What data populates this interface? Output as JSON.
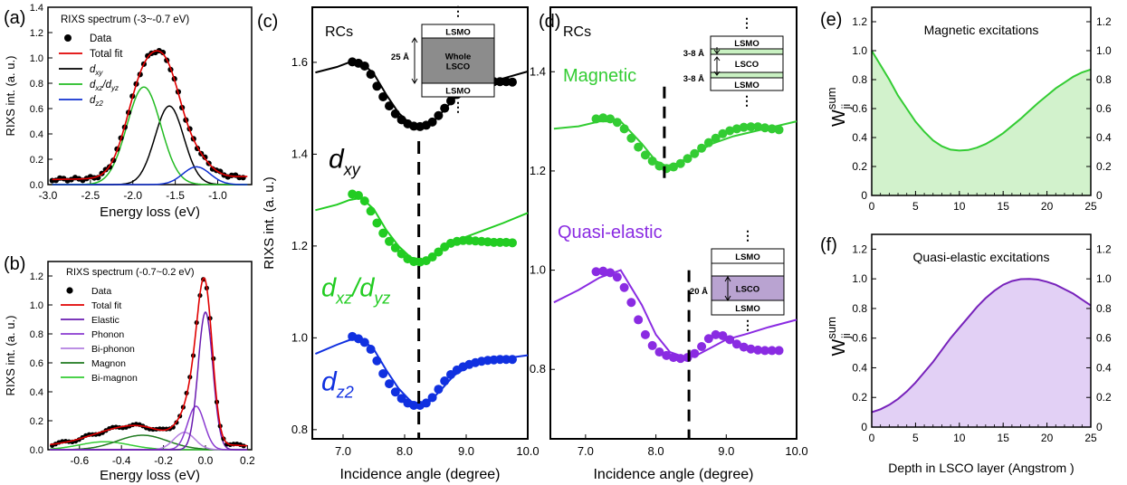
{
  "chart_data": [
    {
      "id": "a",
      "type": "line",
      "panel_label": "(a)",
      "legend_title": "RIXS spectrum (-3~-0.7 eV)",
      "xlabel": "Energy loss (eV)",
      "ylabel": "RIXS int. (a. u.)",
      "xlim": [
        -3.0,
        -0.6
      ],
      "ylim": [
        0.0,
        1.4
      ],
      "xticks": [
        "-3.0",
        "-2.5",
        "-2.0",
        "-1.5",
        "-1.0"
      ],
      "yticks": [
        "0.0",
        "0.2",
        "0.4",
        "0.6",
        "0.8",
        "1.0",
        "1.2",
        "1.4"
      ],
      "legend": [
        "Data",
        "Total fit",
        "dxy",
        "dxz/dyz",
        "dz2"
      ],
      "colors": {
        "data": "#000000",
        "total": "#e00000",
        "dxy": "#000000",
        "dxz": "#22bb22",
        "dz2": "#1030d0"
      },
      "peaks": {
        "dxy": {
          "center": -1.57,
          "height": 0.62,
          "width": 0.17
        },
        "dxz_dyz": {
          "center": -1.87,
          "height": 0.77,
          "width": 0.2
        },
        "dz2": {
          "center": -1.25,
          "height": 0.14,
          "width": 0.16
        },
        "background": {
          "offset": 0.04,
          "slope": 0.01
        }
      }
    },
    {
      "id": "b",
      "type": "line",
      "panel_label": "(b)",
      "legend_title": "RIXS spectrum (-0.7~0.2 eV)",
      "xlabel": "Energy loss (eV)",
      "ylabel": "RIXS int. (a. u.)",
      "xlim": [
        -0.75,
        0.22
      ],
      "ylim": [
        0.0,
        1.3
      ],
      "xticks": [
        "-0.6",
        "-0.4",
        "-0.2",
        "0.0",
        "0.2"
      ],
      "yticks": [
        "0.0",
        "0.2",
        "0.4",
        "0.6",
        "0.8",
        "1.0",
        "1.2"
      ],
      "legend": [
        "Data",
        "Total fit",
        "Elastic",
        "Phonon",
        "Bi-phonon",
        "Magnon",
        "Bi-magnon"
      ],
      "colors": {
        "data": "#000000",
        "total": "#e00000",
        "elastic": "#6a1bb0",
        "phonon": "#8a3ad0",
        "biphonon": "#b37fe0",
        "magnon": "#1f7a1f",
        "bimagnon": "#33cc33"
      },
      "peaks": {
        "elastic": {
          "center": 0.0,
          "height": 0.95,
          "width": 0.035
        },
        "phonon": {
          "center": -0.045,
          "height": 0.3,
          "width": 0.04
        },
        "biphonon": {
          "center": -0.1,
          "height": 0.12,
          "width": 0.05
        },
        "magnon": {
          "center": -0.3,
          "height": 0.1,
          "width": 0.12
        },
        "bimagnon": {
          "center": -0.48,
          "height": 0.055,
          "width": 0.12
        }
      }
    },
    {
      "id": "c",
      "type": "line",
      "panel_label": "(c)",
      "inner_title": "RCs",
      "xlabel": "Incidence angle (degree)",
      "ylabel": "RIXS int. (a. u.)",
      "xlim": [
        6.5,
        10.0
      ],
      "ylim": [
        0.78,
        1.72
      ],
      "xticks": [
        "7.0",
        "8.0",
        "9.0",
        "10.0"
      ],
      "yticks": [
        "0.8",
        "1.0",
        "1.2",
        "1.4",
        "1.6"
      ],
      "dashed_x": 8.23,
      "series": [
        {
          "name": "dxy",
          "color": "#000000",
          "data_x": [
            7.15,
            7.25,
            7.35,
            7.45,
            7.55,
            7.65,
            7.75,
            7.85,
            7.95,
            8.05,
            8.15,
            8.25,
            8.35,
            8.45,
            8.55,
            8.65,
            8.75,
            8.85,
            8.95,
            9.05,
            9.15,
            9.25,
            9.35,
            9.45,
            9.55,
            9.65,
            9.75
          ],
          "data_y": [
            1.601,
            1.598,
            1.592,
            1.574,
            1.548,
            1.525,
            1.505,
            1.488,
            1.475,
            1.466,
            1.461,
            1.46,
            1.463,
            1.47,
            1.484,
            1.5,
            1.516,
            1.53,
            1.54,
            1.547,
            1.552,
            1.555,
            1.557,
            1.558,
            1.558,
            1.558,
            1.557
          ],
          "fit_x": [
            6.55,
            6.9,
            7.1,
            7.3,
            7.5,
            7.7,
            7.9,
            8.1,
            8.25,
            8.4,
            8.6,
            8.8,
            9.0,
            9.3,
            9.6,
            10.0
          ],
          "fit_y": [
            1.578,
            1.59,
            1.6,
            1.6,
            1.575,
            1.53,
            1.49,
            1.465,
            1.455,
            1.462,
            1.49,
            1.52,
            1.54,
            1.555,
            1.565,
            1.58
          ]
        },
        {
          "name": "dxz/dyz",
          "color": "#22cc22",
          "data_x": [
            7.15,
            7.25,
            7.35,
            7.45,
            7.55,
            7.65,
            7.75,
            7.85,
            7.95,
            8.05,
            8.15,
            8.25,
            8.35,
            8.45,
            8.55,
            8.65,
            8.75,
            8.85,
            8.95,
            9.05,
            9.15,
            9.25,
            9.35,
            9.45,
            9.55,
            9.65,
            9.75
          ],
          "data_y": [
            1.313,
            1.31,
            1.298,
            1.276,
            1.25,
            1.228,
            1.21,
            1.196,
            1.183,
            1.172,
            1.166,
            1.165,
            1.168,
            1.176,
            1.187,
            1.198,
            1.206,
            1.21,
            1.212,
            1.212,
            1.211,
            1.21,
            1.209,
            1.208,
            1.208,
            1.208,
            1.207
          ],
          "fit_x": [
            6.55,
            6.9,
            7.1,
            7.3,
            7.5,
            7.7,
            7.9,
            8.1,
            8.3,
            8.5,
            8.7,
            9.0,
            9.3,
            9.6,
            10.0
          ],
          "fit_y": [
            1.278,
            1.29,
            1.3,
            1.305,
            1.28,
            1.235,
            1.2,
            1.175,
            1.17,
            1.18,
            1.2,
            1.22,
            1.235,
            1.25,
            1.272
          ]
        },
        {
          "name": "dz2",
          "color": "#1030e0",
          "data_x": [
            7.15,
            7.25,
            7.35,
            7.45,
            7.55,
            7.65,
            7.75,
            7.85,
            7.95,
            8.05,
            8.15,
            8.25,
            8.35,
            8.45,
            8.55,
            8.65,
            8.75,
            8.85,
            8.95,
            9.05,
            9.15,
            9.25,
            9.35,
            9.45,
            9.55,
            9.65,
            9.75
          ],
          "data_y": [
            1.003,
            0.998,
            0.99,
            0.975,
            0.95,
            0.922,
            0.9,
            0.882,
            0.868,
            0.858,
            0.853,
            0.853,
            0.858,
            0.87,
            0.888,
            0.906,
            0.92,
            0.93,
            0.937,
            0.942,
            0.946,
            0.949,
            0.951,
            0.952,
            0.953,
            0.953,
            0.953
          ],
          "fit_x": [
            6.55,
            6.9,
            7.1,
            7.3,
            7.5,
            7.7,
            7.9,
            8.1,
            8.25,
            8.4,
            8.6,
            8.8,
            9.0,
            9.3,
            9.6,
            10.0
          ],
          "fit_y": [
            0.965,
            0.985,
            0.995,
            0.998,
            0.975,
            0.93,
            0.89,
            0.862,
            0.853,
            0.86,
            0.888,
            0.918,
            0.935,
            0.948,
            0.955,
            0.962
          ]
        }
      ],
      "series_labels": [
        {
          "text": "d",
          "sub": "xy",
          "color": "#000000"
        },
        {
          "text": "d",
          "sub": "xz",
          "mid": "/d",
          "sub2": "yz",
          "color": "#22cc22"
        },
        {
          "text": "d",
          "sub": "z2",
          "color": "#1030e0"
        }
      ],
      "inset": {
        "top": "LSMO",
        "middle": "Whole\nLSCO",
        "bottom": "LSMO",
        "thickness": "25 Å"
      }
    },
    {
      "id": "d",
      "type": "line",
      "panel_label": "(d)",
      "inner_title": "RCs",
      "xlabel": "Incidence angle (degree)",
      "xlim": [
        6.5,
        10.0
      ],
      "ylim": [
        0.66,
        1.53
      ],
      "xticks": [
        "7.0",
        "8.0",
        "9.0",
        "10.0"
      ],
      "yticks": [
        "0.8",
        "1.0",
        "1.2",
        "1.4"
      ],
      "series": [
        {
          "name": "Magnetic",
          "color": "#33cc33",
          "dashed_x": 8.12,
          "data_x": [
            7.15,
            7.25,
            7.35,
            7.45,
            7.55,
            7.65,
            7.75,
            7.85,
            7.95,
            8.05,
            8.15,
            8.25,
            8.35,
            8.45,
            8.55,
            8.65,
            8.75,
            8.85,
            8.95,
            9.05,
            9.15,
            9.25,
            9.35,
            9.45,
            9.55,
            9.65,
            9.75
          ],
          "data_y": [
            1.305,
            1.307,
            1.305,
            1.298,
            1.285,
            1.266,
            1.248,
            1.232,
            1.22,
            1.21,
            1.205,
            1.208,
            1.215,
            1.225,
            1.235,
            1.246,
            1.257,
            1.266,
            1.275,
            1.281,
            1.285,
            1.288,
            1.289,
            1.289,
            1.287,
            1.285,
            1.283
          ],
          "fit_x": [
            6.55,
            6.9,
            7.2,
            7.5,
            7.8,
            8.0,
            8.15,
            8.3,
            8.5,
            8.8,
            9.1,
            9.4,
            9.7,
            10.0
          ],
          "fit_y": [
            1.285,
            1.29,
            1.3,
            1.3,
            1.255,
            1.22,
            1.21,
            1.215,
            1.23,
            1.255,
            1.27,
            1.28,
            1.29,
            1.3
          ]
        },
        {
          "name": "Quasi-elastic",
          "color": "#8a2be2",
          "dashed_x": 8.47,
          "data_x": [
            7.15,
            7.25,
            7.35,
            7.45,
            7.55,
            7.65,
            7.75,
            7.85,
            7.95,
            8.05,
            8.15,
            8.25,
            8.35,
            8.45,
            8.55,
            8.65,
            8.75,
            8.85,
            8.95,
            9.05,
            9.15,
            9.25,
            9.35,
            9.45,
            9.55,
            9.65,
            9.75
          ],
          "data_y": [
            0.997,
            0.998,
            0.995,
            0.986,
            0.965,
            0.935,
            0.9,
            0.87,
            0.848,
            0.835,
            0.828,
            0.824,
            0.822,
            0.824,
            0.832,
            0.846,
            0.862,
            0.87,
            0.868,
            0.86,
            0.851,
            0.845,
            0.841,
            0.839,
            0.838,
            0.838,
            0.838
          ],
          "fit_x": [
            6.55,
            6.9,
            7.2,
            7.5,
            7.8,
            8.0,
            8.2,
            8.4,
            8.6,
            8.8,
            9.0,
            9.3,
            9.6,
            10.0
          ],
          "fit_y": [
            0.935,
            0.96,
            0.985,
            1.0,
            0.93,
            0.87,
            0.835,
            0.825,
            0.83,
            0.845,
            0.86,
            0.872,
            0.885,
            0.9
          ]
        }
      ],
      "insets": [
        {
          "layers": [
            "LSMO",
            "LSCO",
            "LSMO"
          ],
          "thick_top": "3-8 Å",
          "thick_bottom": "3-8 Å"
        },
        {
          "layers": [
            "LSMO",
            "LSCO",
            "LSMO"
          ],
          "thickness": "20 Å"
        }
      ]
    },
    {
      "id": "e",
      "type": "area",
      "panel_label": "(e)",
      "title": "Magnetic excitations",
      "ylabel_main": "W",
      "ylabel_sup": "sum",
      "ylabel_sub": "ji",
      "xlim": [
        0,
        25
      ],
      "ylim": [
        0,
        1.3
      ],
      "xticks": [
        "0",
        "5",
        "10",
        "15",
        "20",
        "25"
      ],
      "yticks": [
        "0",
        "0.2",
        "0.4",
        "0.6",
        "0.8",
        "1.0",
        "1.2"
      ],
      "color": "#33cc33",
      "fill": "#d2f2cc",
      "x": [
        0,
        1,
        2,
        3,
        4,
        5,
        6,
        7,
        8,
        9,
        10,
        11,
        12,
        13,
        14,
        15,
        16,
        17,
        18,
        19,
        20,
        21,
        22,
        23,
        24,
        25
      ],
      "y": [
        1.0,
        0.9,
        0.8,
        0.69,
        0.6,
        0.51,
        0.44,
        0.38,
        0.34,
        0.316,
        0.31,
        0.314,
        0.33,
        0.355,
        0.39,
        0.43,
        0.48,
        0.53,
        0.585,
        0.64,
        0.69,
        0.74,
        0.78,
        0.82,
        0.85,
        0.87
      ]
    },
    {
      "id": "f",
      "type": "area",
      "panel_label": "(f)",
      "title": "Quasi-elastic excitations",
      "xlabel": "Depth in LSCO layer (Angstrom )",
      "ylabel_main": "W",
      "ylabel_sup": "sum",
      "ylabel_sub": "ji",
      "xlim": [
        0,
        25
      ],
      "ylim": [
        0,
        1.3
      ],
      "xticks": [
        "0",
        "5",
        "10",
        "15",
        "20",
        "25"
      ],
      "yticks": [
        "0",
        "0.2",
        "0.4",
        "0.6",
        "0.8",
        "1.0",
        "1.2"
      ],
      "color": "#7722bb",
      "fill": "#e2d0f5",
      "x": [
        0,
        1,
        2,
        3,
        4,
        5,
        6,
        7,
        8,
        9,
        10,
        11,
        12,
        13,
        14,
        15,
        16,
        17,
        18,
        19,
        20,
        21,
        22,
        23,
        24,
        25
      ],
      "y": [
        0.1,
        0.12,
        0.15,
        0.19,
        0.24,
        0.3,
        0.37,
        0.44,
        0.52,
        0.6,
        0.67,
        0.74,
        0.81,
        0.87,
        0.92,
        0.96,
        0.985,
        0.998,
        1.0,
        0.995,
        0.98,
        0.96,
        0.93,
        0.9,
        0.86,
        0.82
      ]
    }
  ]
}
